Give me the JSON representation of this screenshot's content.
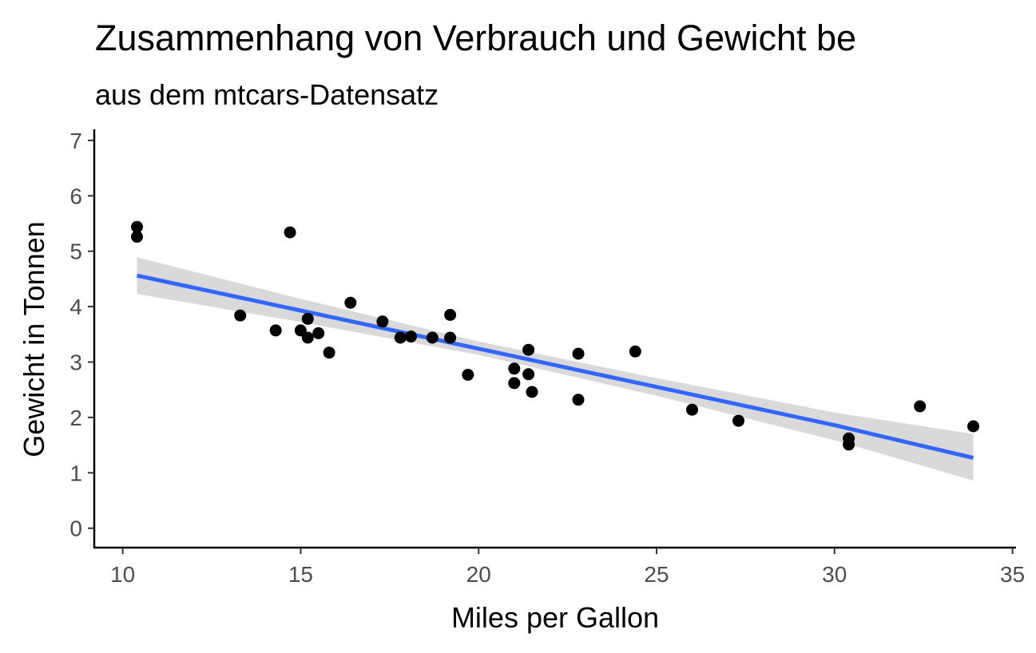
{
  "chart_data": {
    "type": "scatter",
    "title": "Zusammenhang von Verbrauch und Gewicht be",
    "subtitle": "aus dem mtcars-Datensatz",
    "xlabel": "Miles per Gallon",
    "ylabel": "Gewicht in Tonnen",
    "xlim": [
      9.2,
      35.1
    ],
    "ylim": [
      -0.35,
      7.2
    ],
    "x_ticks": [
      10,
      15,
      20,
      25,
      30,
      35
    ],
    "y_ticks": [
      0,
      1,
      2,
      3,
      4,
      5,
      6,
      7
    ],
    "grid": false,
    "legend": "none",
    "point_color": "#000000",
    "trend_color": "#3366ff",
    "band_color": "#d9d9d9",
    "points": [
      {
        "x": 10.4,
        "y": 5.44
      },
      {
        "x": 10.4,
        "y": 5.26
      },
      {
        "x": 13.3,
        "y": 3.84
      },
      {
        "x": 14.3,
        "y": 3.57
      },
      {
        "x": 14.7,
        "y": 5.34
      },
      {
        "x": 15.0,
        "y": 3.57
      },
      {
        "x": 15.2,
        "y": 3.78
      },
      {
        "x": 15.2,
        "y": 3.44
      },
      {
        "x": 15.5,
        "y": 3.52
      },
      {
        "x": 15.8,
        "y": 3.17
      },
      {
        "x": 16.4,
        "y": 4.07
      },
      {
        "x": 17.3,
        "y": 3.73
      },
      {
        "x": 17.8,
        "y": 3.44
      },
      {
        "x": 18.1,
        "y": 3.46
      },
      {
        "x": 18.7,
        "y": 3.44
      },
      {
        "x": 19.2,
        "y": 3.44
      },
      {
        "x": 19.2,
        "y": 3.85
      },
      {
        "x": 19.7,
        "y": 2.77
      },
      {
        "x": 21.0,
        "y": 2.62
      },
      {
        "x": 21.0,
        "y": 2.88
      },
      {
        "x": 21.4,
        "y": 3.22
      },
      {
        "x": 21.4,
        "y": 2.78
      },
      {
        "x": 21.5,
        "y": 2.46
      },
      {
        "x": 22.8,
        "y": 2.32
      },
      {
        "x": 22.8,
        "y": 3.15
      },
      {
        "x": 24.4,
        "y": 3.19
      },
      {
        "x": 26.0,
        "y": 2.14
      },
      {
        "x": 27.3,
        "y": 1.94
      },
      {
        "x": 30.4,
        "y": 1.62
      },
      {
        "x": 30.4,
        "y": 1.51
      },
      {
        "x": 32.4,
        "y": 2.2
      },
      {
        "x": 33.9,
        "y": 1.84
      }
    ],
    "trend": {
      "x": [
        10.4,
        15.0,
        20.0,
        25.0,
        30.0,
        33.9
      ],
      "y": [
        4.56,
        3.93,
        3.24,
        2.55,
        1.86,
        1.27
      ],
      "lower": [
        4.23,
        3.72,
        3.13,
        2.39,
        1.59,
        0.86
      ],
      "upper": [
        4.89,
        4.14,
        3.37,
        2.71,
        2.09,
        1.7
      ]
    }
  }
}
